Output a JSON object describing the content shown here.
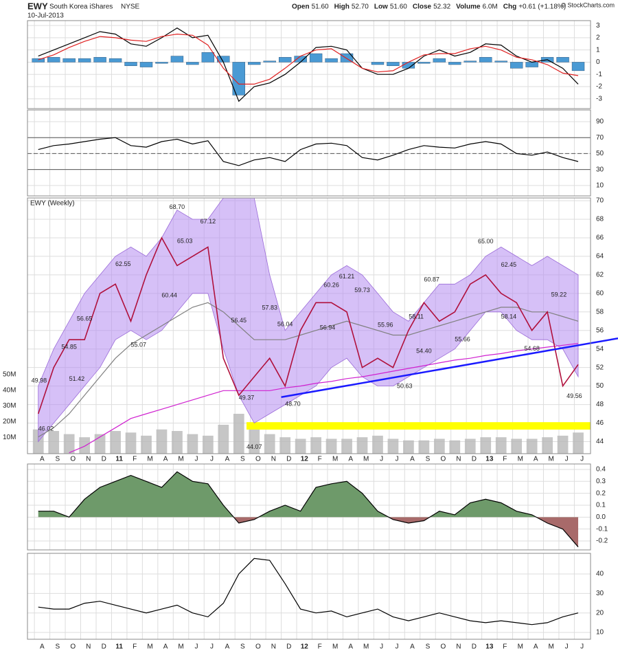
{
  "header": {
    "symbol": "EWY",
    "name": "South Korea iShares",
    "exchange": "NYSE",
    "date": "10-Jul-2013",
    "copyright": "© StockCharts.com",
    "stats": [
      {
        "label": "Open",
        "value": "51.60"
      },
      {
        "label": "High",
        "value": "52.70"
      },
      {
        "label": "Low",
        "value": "51.60"
      },
      {
        "label": "Close",
        "value": "52.32"
      },
      {
        "label": "Volume",
        "value": "6.0M"
      },
      {
        "label": "Chg",
        "value": "+0.61 (+1.18%)"
      }
    ]
  },
  "x_axis": {
    "xlim": [
      -0.7,
      35.8
    ],
    "categories": [
      "A",
      "S",
      "O",
      "N",
      "D",
      "11",
      "F",
      "M",
      "A",
      "M",
      "J",
      "J",
      "A",
      "S",
      "O",
      "N",
      "D",
      "12",
      "F",
      "M",
      "A",
      "M",
      "J",
      "J",
      "A",
      "S",
      "O",
      "N",
      "D",
      "13",
      "F",
      "M",
      "A",
      "M",
      "J",
      "J"
    ]
  },
  "chart_data": [
    {
      "type": "macd",
      "ylim": [
        -3.8,
        3.4
      ],
      "yticks": [
        3,
        2,
        1,
        0,
        -1,
        -2,
        -3
      ],
      "histogram": {
        "color": "#4a9ad4",
        "values": [
          0.3,
          0.4,
          0.3,
          0.3,
          0.4,
          0.3,
          -0.3,
          -0.4,
          -0.1,
          0.5,
          -0.2,
          0.8,
          0.5,
          -2.7,
          -0.2,
          0.1,
          0.4,
          0.5,
          0.7,
          0.3,
          0.7,
          0,
          -0.2,
          -0.3,
          -0.5,
          -0.1,
          0.3,
          -0.2,
          0.1,
          0.4,
          0.1,
          -0.5,
          -0.4,
          0.4,
          0.4,
          -0.7
        ]
      },
      "series": [
        {
          "color": "#000000",
          "values": [
            0.5,
            1.0,
            1.5,
            2.0,
            2.5,
            2.3,
            1.5,
            1.3,
            2.0,
            2.8,
            2.0,
            2.2,
            0.0,
            -3.2,
            -2.0,
            -1.7,
            -1.0,
            0.0,
            1.2,
            1.3,
            1.0,
            -0.5,
            -1.0,
            -1.0,
            -0.5,
            0.5,
            1.0,
            0.5,
            0.8,
            1.5,
            1.4,
            0.5,
            0.0,
            0.2,
            -0.5,
            -1.8
          ]
        },
        {
          "color": "#e02020",
          "values": [
            0.2,
            0.6,
            1.2,
            1.7,
            2.1,
            2.0,
            1.8,
            1.7,
            2.1,
            2.3,
            2.2,
            1.4,
            -0.5,
            -1.8,
            -1.8,
            -1.4,
            -0.5,
            0.5,
            1.0,
            1.1,
            0.3,
            -0.5,
            -0.8,
            -0.7,
            0.0,
            0.6,
            0.7,
            0.7,
            1.1,
            1.3,
            1.0,
            0.4,
            0.2,
            -0.2,
            -0.9,
            -1.1
          ]
        }
      ]
    },
    {
      "type": "rsi",
      "ylim": [
        -3,
        104.6
      ],
      "yticks": [
        90,
        70,
        50,
        30,
        10
      ],
      "reference_lines": [
        70,
        50,
        30
      ],
      "series": [
        {
          "color": "#000000",
          "values": [
            55,
            60,
            62,
            65,
            68,
            70,
            60,
            58,
            65,
            68,
            62,
            66,
            40,
            35,
            42,
            45,
            40,
            55,
            62,
            63,
            60,
            45,
            42,
            48,
            55,
            60,
            58,
            57,
            62,
            65,
            62,
            50,
            48,
            52,
            45,
            40
          ]
        }
      ]
    },
    {
      "type": "price",
      "title": "EWY (Weekly)",
      "ylim": [
        42.7,
        70.3
      ],
      "yticks": [
        44,
        46,
        48,
        50,
        52,
        54,
        56,
        58,
        60,
        62,
        64,
        66,
        68,
        70
      ],
      "bands": {
        "color": "#b58cf0",
        "upper": [
          50,
          54,
          57,
          60,
          62,
          64,
          65,
          64,
          66,
          69,
          68,
          68,
          70.3,
          70.3,
          70.3,
          62,
          56,
          58,
          60,
          62,
          63,
          62,
          60,
          58,
          57,
          59,
          61,
          61,
          62,
          64,
          65,
          64,
          63,
          64,
          63,
          62
        ],
        "lower": [
          44,
          46,
          48,
          50,
          52,
          55,
          56,
          55,
          56,
          58,
          60,
          60,
          54,
          49,
          46,
          47,
          48,
          49,
          50,
          52,
          53,
          51,
          50,
          50,
          51,
          52,
          53,
          54,
          56,
          58,
          58,
          56,
          55,
          55,
          54,
          51
        ]
      },
      "series": [
        {
          "color": "#808080",
          "values": [
            44.5,
            45.5,
            47,
            49,
            51,
            53,
            54.5,
            55.5,
            56.5,
            57.5,
            58.5,
            59,
            58,
            56.5,
            55,
            55,
            55,
            55.5,
            56,
            56.5,
            57,
            56.5,
            56,
            55.5,
            55.5,
            56,
            56.5,
            57,
            57.5,
            58,
            58.5,
            58.5,
            58,
            58,
            57.5,
            57
          ]
        },
        {
          "color": "#d020d0",
          "values": [
            null,
            null,
            42.8,
            43.5,
            44.5,
            45.5,
            46.5,
            47,
            47.5,
            48,
            48.5,
            49,
            49.5,
            49.5,
            49.5,
            49.5,
            49.8,
            50,
            50.3,
            50.5,
            50.8,
            51,
            51.3,
            51.6,
            51.9,
            52.2,
            52.5,
            52.8,
            53,
            53.3,
            53.5,
            53.8,
            54,
            54.2,
            54.4,
            54.6
          ]
        },
        {
          "color": "#b0103c",
          "values": [
            47,
            52,
            55,
            55,
            60,
            61,
            57,
            62,
            66,
            63,
            64,
            65,
            53,
            49,
            51,
            53,
            50,
            56,
            59,
            59,
            58,
            52,
            53,
            52,
            56,
            59,
            57,
            58,
            61,
            62,
            60,
            59,
            56,
            58,
            50,
            52.32
          ]
        }
      ],
      "volume": {
        "color": "#b8b8b8",
        "ylim": [
          -0.5,
          163
        ],
        "yticks": [
          {
            "value": 10,
            "label": "10M"
          },
          {
            "value": 20,
            "label": "20M"
          },
          {
            "value": 30,
            "label": "30M"
          },
          {
            "value": 40,
            "label": "40M"
          },
          {
            "value": 50,
            "label": "50M"
          }
        ],
        "values": [
          15,
          14,
          12,
          10,
          12,
          14,
          13,
          11,
          15,
          14,
          12,
          11,
          18,
          25,
          15,
          12,
          10,
          9,
          10,
          9,
          9,
          10,
          11,
          9,
          8,
          8,
          9,
          8,
          9,
          10,
          10,
          9,
          9,
          10,
          11,
          13
        ]
      },
      "trendline": {
        "color": "#1a1aff",
        "x": [
          15.75,
          35.8
        ],
        "y": [
          48.8,
          55.0
        ]
      },
      "highlight_band": {
        "color": "#ffff00",
        "y": [
          45.3,
          46.1
        ]
      },
      "annotations": [
        {
          "x": 0.05,
          "value": 49.98,
          "label": "49.98"
        },
        {
          "x": 0.5,
          "value": 46.02,
          "label": "46.02"
        },
        {
          "x": 2,
          "value": 54.85,
          "label": "54.85"
        },
        {
          "x": 2.5,
          "value": 51.42,
          "label": "51.42"
        },
        {
          "x": 3,
          "value": 56.65,
          "label": "56.65"
        },
        {
          "x": 5.5,
          "value": 62.55,
          "label": "62.55"
        },
        {
          "x": 6.5,
          "value": 55.07,
          "label": "55.07"
        },
        {
          "x": 9,
          "value": 68.7,
          "label": "68.70"
        },
        {
          "x": 9.5,
          "value": 65.03,
          "label": "65.03"
        },
        {
          "x": 8.5,
          "value": 60.44,
          "label": "60.44"
        },
        {
          "x": 11,
          "value": 67.12,
          "label": "67.12"
        },
        {
          "x": 13,
          "value": 56.45,
          "label": "56.45"
        },
        {
          "x": 15,
          "value": 57.83,
          "label": "57.83"
        },
        {
          "x": 13.5,
          "value": 49.37,
          "label": "49.37"
        },
        {
          "x": 14,
          "value": 44.07,
          "label": "44.07"
        },
        {
          "x": 16,
          "value": 56.04,
          "label": "56.04"
        },
        {
          "x": 16.5,
          "value": 48.7,
          "label": "48.70"
        },
        {
          "x": 18.75,
          "value": 56.94,
          "label": "56.94"
        },
        {
          "x": 19,
          "value": 60.26,
          "label": "60.26"
        },
        {
          "x": 20,
          "value": 61.21,
          "label": "61.21"
        },
        {
          "x": 21,
          "value": 59.73,
          "label": "59.73"
        },
        {
          "x": 22.5,
          "value": 55.96,
          "label": "55.96"
        },
        {
          "x": 24.5,
          "value": 58.11,
          "label": "58.11"
        },
        {
          "x": 23.75,
          "value": 50.63,
          "label": "50.63"
        },
        {
          "x": 25,
          "value": 54.4,
          "label": "54.40"
        },
        {
          "x": 25.5,
          "value": 60.87,
          "label": "60.87"
        },
        {
          "x": 27.5,
          "value": 55.66,
          "label": "55.66"
        },
        {
          "x": 29,
          "value": 65.0,
          "label": "65.00"
        },
        {
          "x": 30.5,
          "value": 62.45,
          "label": "62.45"
        },
        {
          "x": 30.5,
          "value": 58.14,
          "label": "58.14"
        },
        {
          "x": 33.75,
          "value": 59.22,
          "label": "59.22"
        },
        {
          "x": 32,
          "value": 54.68,
          "label": "54.68"
        },
        {
          "x": 34.75,
          "value": 49.56,
          "label": "49.56"
        }
      ]
    },
    {
      "type": "cmf",
      "ylim": [
        -0.275,
        0.446
      ],
      "yticks": [
        0.4,
        0.3,
        0.2,
        0.1,
        {
          "value": 0,
          "label": "0.0"
        },
        -0.1,
        -0.2
      ],
      "series": [
        {
          "color": "#000000",
          "positive_color": "#6e9a6a",
          "negative_color": "#a86a6a",
          "values": [
            0.05,
            0.05,
            0.0,
            0.15,
            0.25,
            0.3,
            0.35,
            0.3,
            0.25,
            0.38,
            0.3,
            0.28,
            0.1,
            -0.05,
            -0.02,
            0.05,
            0.1,
            0.05,
            0.25,
            0.28,
            0.3,
            0.2,
            0.05,
            -0.02,
            -0.05,
            -0.03,
            0.05,
            0.02,
            0.12,
            0.15,
            0.12,
            0.05,
            0.02,
            -0.05,
            -0.1,
            -0.25
          ]
        }
      ]
    },
    {
      "type": "line",
      "ylim": [
        6.5,
        50.6
      ],
      "yticks": [
        40,
        30,
        20,
        10
      ],
      "series": [
        {
          "color": "#000000",
          "values": [
            23,
            22,
            22,
            25,
            26,
            24,
            22,
            20,
            22,
            24,
            20,
            18,
            25,
            40,
            48,
            47,
            35,
            22,
            20,
            21,
            18,
            20,
            22,
            18,
            16,
            18,
            20,
            18,
            16,
            15,
            16,
            15,
            14,
            15,
            18,
            20
          ]
        }
      ]
    }
  ]
}
